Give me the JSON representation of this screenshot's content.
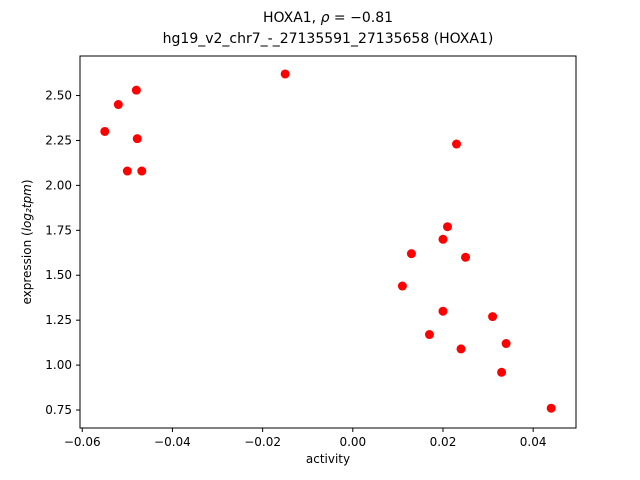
{
  "title": {
    "line1_prefix": "HOXA1, ",
    "line1_rho": "ρ",
    "line1_rest": " = −0.81",
    "line2": "hg19_v2_chr7_-_27135591_27135658 (HOXA1)"
  },
  "axis_labels": {
    "xlabel": "activity",
    "ylabel_prefix": "expression (",
    "ylabel_math": "log₂tpm",
    "ylabel_suffix": ")"
  },
  "chart_data": {
    "type": "scatter",
    "title": "HOXA1, ρ = −0.81",
    "subtitle": "hg19_v2_chr7_-_27135591_27135658 (HOXA1)",
    "xlabel": "activity",
    "ylabel": "expression (log₂tpm)",
    "marker_color": "#ff0000",
    "axis_color": "#000000",
    "grid": false,
    "legend": null,
    "xlim": [
      -0.0605,
      0.0495
    ],
    "ylim": [
      0.65,
      2.72
    ],
    "xticks": [
      -0.06,
      -0.04,
      -0.02,
      0.0,
      0.02,
      0.04
    ],
    "xtick_labels": [
      "−0.06",
      "−0.04",
      "−0.02",
      "0.00",
      "0.02",
      "0.04"
    ],
    "yticks": [
      0.75,
      1.0,
      1.25,
      1.5,
      1.75,
      2.0,
      2.25,
      2.5
    ],
    "ytick_labels": [
      "0.75",
      "1.00",
      "1.25",
      "1.50",
      "1.75",
      "2.00",
      "2.25",
      "2.50"
    ],
    "points": [
      {
        "x": -0.055,
        "y": 2.3
      },
      {
        "x": -0.052,
        "y": 2.45
      },
      {
        "x": -0.05,
        "y": 2.08
      },
      {
        "x": -0.048,
        "y": 2.53
      },
      {
        "x": -0.0478,
        "y": 2.26
      },
      {
        "x": -0.0468,
        "y": 2.08
      },
      {
        "x": -0.015,
        "y": 2.62
      },
      {
        "x": 0.011,
        "y": 1.44
      },
      {
        "x": 0.013,
        "y": 1.62
      },
      {
        "x": 0.017,
        "y": 1.17
      },
      {
        "x": 0.02,
        "y": 1.7
      },
      {
        "x": 0.02,
        "y": 1.3
      },
      {
        "x": 0.021,
        "y": 1.77
      },
      {
        "x": 0.023,
        "y": 2.23
      },
      {
        "x": 0.024,
        "y": 1.09
      },
      {
        "x": 0.025,
        "y": 1.6
      },
      {
        "x": 0.031,
        "y": 1.27
      },
      {
        "x": 0.033,
        "y": 0.96
      },
      {
        "x": 0.034,
        "y": 1.12
      },
      {
        "x": 0.044,
        "y": 0.76
      }
    ]
  }
}
